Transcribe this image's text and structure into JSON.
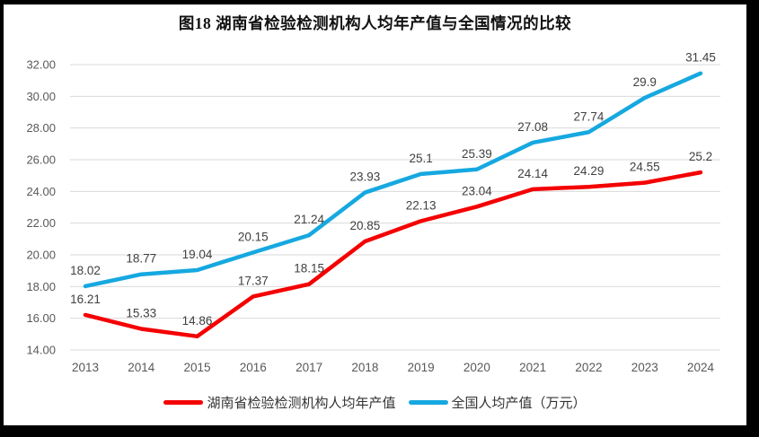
{
  "frame": {
    "border_color": "#000000",
    "page_background": "#ffffff"
  },
  "chart_data": {
    "type": "line",
    "title": "图18 湖南省检验检测机构人均年产值与全国情况的比较",
    "categories": [
      "2013",
      "2014",
      "2015",
      "2016",
      "2017",
      "2018",
      "2019",
      "2020",
      "2021",
      "2022",
      "2023",
      "2024"
    ],
    "series": [
      {
        "name": "湖南省检验检测机构人均年产值",
        "color": "#f40000",
        "values": [
          16.21,
          15.33,
          14.86,
          17.37,
          18.15,
          20.85,
          22.13,
          23.04,
          24.14,
          24.29,
          24.55,
          25.2
        ],
        "labels": [
          "16.21",
          "15.33",
          "14.86",
          "17.37",
          "18.15",
          "20.85",
          "22.13",
          "23.04",
          "24.14",
          "24.29",
          "24.55",
          "25.2"
        ]
      },
      {
        "name": "全国人均产值（万元）",
        "color": "#16a8e0",
        "values": [
          18.02,
          18.77,
          19.04,
          20.15,
          21.24,
          23.93,
          25.1,
          25.39,
          27.08,
          27.74,
          29.9,
          31.45
        ],
        "labels": [
          "18.02",
          "18.77",
          "19.04",
          "20.15",
          "21.24",
          "23.93",
          "25.1",
          "25.39",
          "27.08",
          "27.74",
          "29.9",
          "31.45"
        ]
      }
    ],
    "ylim": [
      14,
      32
    ],
    "ytick_step": 2,
    "ytick_labels": [
      "14.00",
      "16.00",
      "18.00",
      "20.00",
      "22.00",
      "24.00",
      "26.00",
      "28.00",
      "30.00",
      "32.00"
    ],
    "xlabel": "",
    "ylabel": "",
    "grid": true,
    "legend_position": "bottom",
    "styles": {
      "grid_color": "#d9d9d9",
      "tick_text_color": "#595959",
      "data_label_color": "#404040",
      "line_width": 4.5
    }
  }
}
